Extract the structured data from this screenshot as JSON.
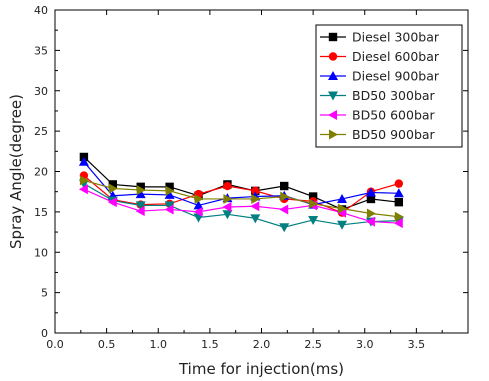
{
  "chart_data": {
    "type": "line",
    "title": "",
    "xlabel": "Time for injection(ms)",
    "ylabel": "Spray Angle(degree)",
    "xlim": [
      0.0,
      4.0
    ],
    "ylim": [
      0,
      40
    ],
    "xticks": [
      "0.0",
      "0.5",
      "1.0",
      "1.5",
      "2.0",
      "2.5",
      "3.0",
      "3.5"
    ],
    "xtick_values": [
      0.0,
      0.5,
      1.0,
      1.5,
      2.0,
      2.5,
      3.0,
      3.5
    ],
    "yticks": [
      "0",
      "5",
      "10",
      "15",
      "20",
      "25",
      "30",
      "35",
      "40"
    ],
    "ytick_values": [
      0,
      5,
      10,
      15,
      20,
      25,
      30,
      35,
      40
    ],
    "grid": false,
    "legend_position": "top-right",
    "x": [
      0.28,
      0.56,
      0.83,
      1.11,
      1.39,
      1.67,
      1.94,
      2.22,
      2.5,
      2.78,
      3.06,
      3.33
    ],
    "series": [
      {
        "name": "Diesel 300bar",
        "color": "#000000",
        "marker": "square",
        "values": [
          21.8,
          18.4,
          18.1,
          18.1,
          17.0,
          18.4,
          17.6,
          18.2,
          16.9,
          15.3,
          16.6,
          16.2
        ]
      },
      {
        "name": "Diesel 600bar",
        "color": "#ff0000",
        "marker": "circle",
        "values": [
          19.5,
          16.5,
          15.9,
          16.0,
          17.2,
          18.2,
          17.6,
          16.6,
          16.3,
          14.9,
          17.5,
          18.5
        ]
      },
      {
        "name": "Diesel 900bar",
        "color": "#0000ff",
        "marker": "triangle-up",
        "values": [
          21.2,
          17.0,
          17.2,
          17.1,
          15.8,
          16.7,
          16.9,
          17.0,
          15.9,
          16.6,
          17.4,
          17.3
        ]
      },
      {
        "name": "BD50 300bar",
        "color": "#008080",
        "marker": "triangle-down",
        "values": [
          18.5,
          16.4,
          15.8,
          15.8,
          14.3,
          14.7,
          14.2,
          13.1,
          14.0,
          13.4,
          13.8,
          13.9
        ]
      },
      {
        "name": "BD50 600bar",
        "color": "#ff00ff",
        "marker": "triangle-left",
        "values": [
          17.8,
          16.2,
          15.1,
          15.3,
          15.0,
          15.6,
          15.7,
          15.3,
          15.8,
          14.9,
          13.8,
          13.6
        ]
      },
      {
        "name": "BD50 900bar",
        "color": "#808000",
        "marker": "triangle-right",
        "values": [
          18.9,
          17.9,
          17.7,
          17.6,
          16.6,
          16.6,
          16.6,
          16.9,
          16.0,
          15.4,
          14.8,
          14.4
        ]
      }
    ]
  }
}
